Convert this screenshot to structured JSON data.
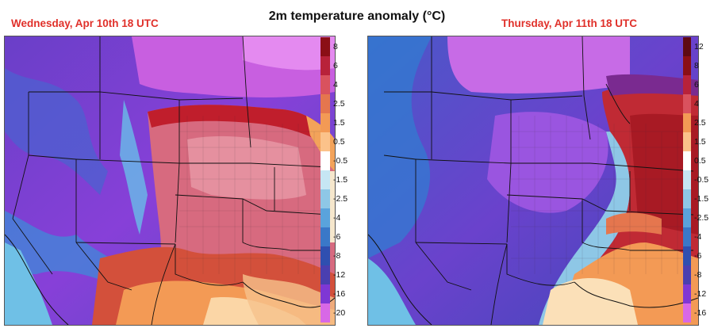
{
  "title": "2m temperature anomaly (°C)",
  "panels": [
    {
      "title": "Wednesday, Apr 10th 18 UTC",
      "colorbar_labels": [
        "8",
        "6",
        "4",
        "2.5",
        "1.5",
        "0.5",
        "-0.5",
        "-1.5",
        "-2.5",
        "-4",
        "-6",
        "-8",
        "-12",
        "-16",
        "-20"
      ]
    },
    {
      "title": "Thursday, Apr 11th 18 UTC",
      "colorbar_labels": [
        "12",
        "8",
        "6",
        "4",
        "2.5",
        "1.5",
        "0.5",
        "-0.5",
        "-1.5",
        "-2.5",
        "-4",
        "-6",
        "-8",
        "-12",
        "-16"
      ]
    }
  ],
  "colors": {
    "very_warm": "#b8223a",
    "warm": "#d9525e",
    "mild_warm": "#f39a55",
    "pale_warm": "#fbd6a6",
    "neutral": "#ffffff",
    "cool": "#8ec7e6",
    "colder": "#3a78c8",
    "cold": "#4a3fb0",
    "very_cold": "#7f37d4",
    "extreme_cold": "#d868e6",
    "pink_anomaly": "#cd6f85"
  }
}
